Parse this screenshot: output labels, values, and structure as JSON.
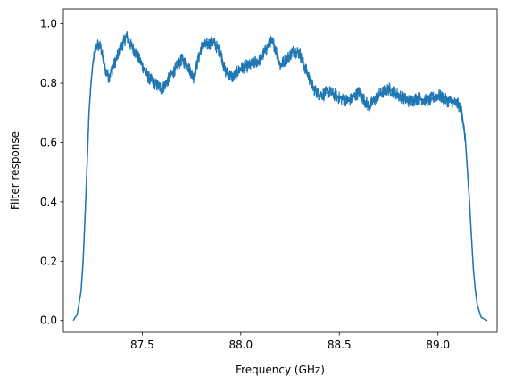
{
  "chart_data": {
    "type": "line",
    "title": "",
    "xlabel": "Frequency (GHz)",
    "ylabel": "Filter response",
    "xlim": [
      87.1,
      89.3
    ],
    "ylim": [
      -0.04,
      1.05
    ],
    "xticks": [
      87.5,
      88.0,
      88.5,
      89.0
    ],
    "xtick_labels": [
      "87.5",
      "88.0",
      "88.5",
      "89.0"
    ],
    "yticks": [
      0.0,
      0.2,
      0.4,
      0.6,
      0.8,
      1.0
    ],
    "ytick_labels": [
      "0.0",
      "0.2",
      "0.4",
      "0.6",
      "0.8",
      "1.0"
    ],
    "grid": false,
    "series": [
      {
        "color": "#1f77b4",
        "x": [
          87.15,
          87.17,
          87.19,
          87.2,
          87.21,
          87.22,
          87.23,
          87.24,
          87.25,
          87.26,
          87.27,
          87.29,
          87.31,
          87.33,
          87.35,
          87.38,
          87.42,
          87.44,
          87.47,
          87.5,
          87.53,
          87.56,
          87.6,
          87.64,
          87.7,
          87.73,
          87.76,
          87.8,
          87.83,
          87.86,
          87.9,
          87.92,
          87.96,
          88.0,
          88.05,
          88.1,
          88.15,
          88.17,
          88.2,
          88.23,
          88.27,
          88.3,
          88.32,
          88.34,
          88.37,
          88.4,
          88.45,
          88.5,
          88.55,
          88.6,
          88.65,
          88.7,
          88.75,
          88.8,
          88.85,
          88.9,
          88.95,
          89.0,
          89.05,
          89.1,
          89.12,
          89.14,
          89.15,
          89.16,
          89.17,
          89.18,
          89.19,
          89.2,
          89.22,
          89.25
        ],
        "y": [
          0.0,
          0.02,
          0.1,
          0.2,
          0.35,
          0.52,
          0.7,
          0.8,
          0.87,
          0.9,
          0.93,
          0.92,
          0.85,
          0.82,
          0.85,
          0.9,
          0.96,
          0.93,
          0.9,
          0.86,
          0.82,
          0.8,
          0.78,
          0.82,
          0.88,
          0.86,
          0.82,
          0.92,
          0.93,
          0.94,
          0.9,
          0.84,
          0.82,
          0.85,
          0.86,
          0.88,
          0.94,
          0.93,
          0.86,
          0.88,
          0.91,
          0.9,
          0.86,
          0.83,
          0.78,
          0.76,
          0.77,
          0.75,
          0.74,
          0.77,
          0.72,
          0.76,
          0.78,
          0.76,
          0.74,
          0.75,
          0.74,
          0.76,
          0.74,
          0.73,
          0.71,
          0.6,
          0.5,
          0.4,
          0.28,
          0.17,
          0.1,
          0.05,
          0.01,
          0.0
        ]
      }
    ]
  }
}
